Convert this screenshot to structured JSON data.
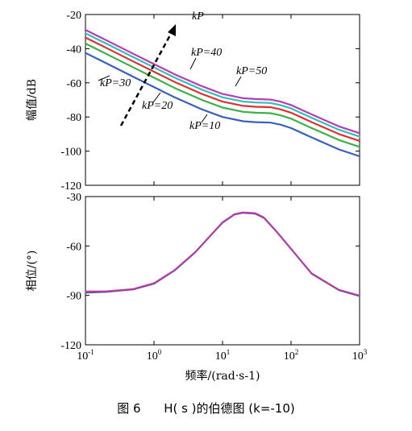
{
  "caption": {
    "fig_no": "图 6",
    "title": "H( s )的伯德图 (k=-10)"
  },
  "chart_data": [
    {
      "type": "line",
      "panel": "magnitude",
      "ylabel": "幅值/dB",
      "xscale": "log",
      "xlim": [
        0.1,
        1000
      ],
      "ylim": [
        -120,
        -20
      ],
      "yticks": [
        -20,
        -40,
        -60,
        -80,
        -100,
        -120
      ],
      "grid": false,
      "x": [
        0.1,
        0.2,
        0.5,
        1,
        2,
        5,
        10,
        20,
        30,
        50,
        70,
        100,
        200,
        500,
        1000
      ],
      "series": [
        {
          "name": "kP=10",
          "color": "#3a5fbf",
          "values": [
            -42.5,
            -48.5,
            -56.5,
            -62.5,
            -68.5,
            -75.5,
            -80,
            -82.5,
            -83,
            -83.3,
            -84.5,
            -86.5,
            -92,
            -99,
            -103
          ]
        },
        {
          "name": "kP=20",
          "color": "#3cb14a",
          "values": [
            -37,
            -43,
            -51,
            -57,
            -63,
            -70,
            -74.5,
            -77,
            -77.5,
            -77.8,
            -79,
            -81,
            -86.5,
            -93.5,
            -97.5
          ]
        },
        {
          "name": "kP=30",
          "color": "#e03030",
          "values": [
            -33.5,
            -39.5,
            -47.5,
            -53.5,
            -59.5,
            -66.5,
            -71,
            -73.5,
            -74,
            -74.3,
            -75.5,
            -77.5,
            -83,
            -90,
            -94
          ]
        },
        {
          "name": "kP=40",
          "color": "#2fbfbf",
          "values": [
            -31,
            -37,
            -45,
            -51,
            -57,
            -64,
            -68.5,
            -71,
            -71.5,
            -71.8,
            -73,
            -75,
            -80.5,
            -87.5,
            -91.5
          ]
        },
        {
          "name": "kP=50",
          "color": "#b43cb4",
          "values": [
            -29,
            -35,
            -43,
            -49,
            -55,
            -62,
            -66.5,
            -69,
            -69.5,
            -69.8,
            -71,
            -73,
            -78.5,
            -85.5,
            -89.5
          ]
        }
      ],
      "annotations": {
        "arrow_label": "kP",
        "labels": [
          "kP=10",
          "kP=20",
          "kP=30",
          "kP=40",
          "kP=50"
        ]
      }
    },
    {
      "type": "line",
      "panel": "phase",
      "ylabel": "相位/(°)",
      "xlabel": "频率/(rad·s-1)",
      "xscale": "log",
      "xlim": [
        0.1,
        1000
      ],
      "ylim": [
        -120,
        -30
      ],
      "yticks": [
        -30,
        -60,
        -90,
        -120
      ],
      "xticks": [
        "10-1",
        "100",
        "101",
        "102",
        "103"
      ],
      "grid": false,
      "x": [
        0.1,
        0.2,
        0.5,
        1,
        2,
        4,
        7,
        10,
        15,
        20,
        30,
        40,
        60,
        100,
        200,
        500,
        1000
      ],
      "series": [
        {
          "color": "#3a5fbf",
          "values": [
            -88.5,
            -88,
            -86.5,
            -83,
            -75,
            -64,
            -53,
            -46,
            -41,
            -40,
            -40.5,
            -43,
            -51,
            -62,
            -77,
            -87,
            -90.5
          ]
        },
        {
          "color": "#e03030",
          "values": [
            -87.8,
            -87.6,
            -86.2,
            -82.7,
            -74.7,
            -63.7,
            -52.7,
            -45.7,
            -40.7,
            -39.7,
            -40.2,
            -42.7,
            -50.7,
            -61.7,
            -76.7,
            -86.7,
            -90.2
          ]
        },
        {
          "color": "#b43cb4",
          "values": [
            -87.5,
            -87.4,
            -86,
            -82.5,
            -74.5,
            -63.5,
            -52.5,
            -45.5,
            -40.5,
            -39.5,
            -40,
            -42.5,
            -50.5,
            -61.5,
            -76.5,
            -86.5,
            -90
          ]
        }
      ]
    }
  ]
}
